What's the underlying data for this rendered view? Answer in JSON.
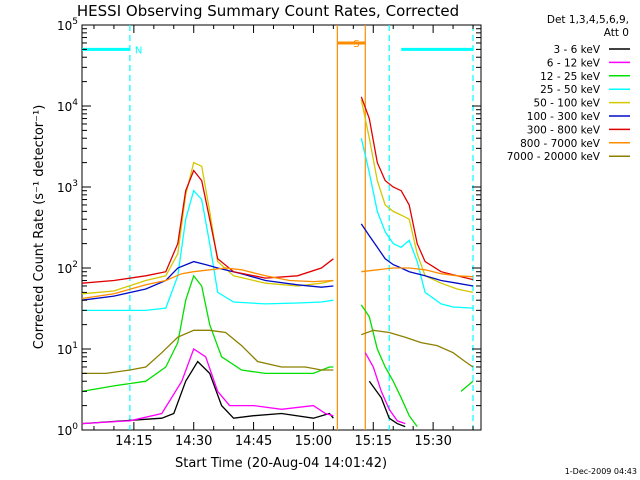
{
  "chart_data": {
    "type": "line",
    "title": "HESSI Observing Summary Count Rates, Corrected",
    "xlabel": "Start Time (20-Aug-04 14:01:42)",
    "ylabel": "Corrected Count Rate (s⁻¹ detector⁻¹)",
    "y_scale": "log",
    "ylim": [
      1,
      100000
    ],
    "xlim": [
      "14:02",
      "15:42"
    ],
    "x_ticks": [
      {
        "t": "14:15",
        "label": "14:15"
      },
      {
        "t": "14:30",
        "label": "14:30"
      },
      {
        "t": "14:45",
        "label": "14:45"
      },
      {
        "t": "15:00",
        "label": "15:00"
      },
      {
        "t": "15:15",
        "label": "15:15"
      },
      {
        "t": "15:30",
        "label": "15:30"
      }
    ],
    "y_ticks": [
      {
        "v": 1,
        "base": "10",
        "exp": "0"
      },
      {
        "v": 10,
        "base": "10",
        "exp": "1"
      },
      {
        "v": 100,
        "base": "10",
        "exp": "2"
      },
      {
        "v": 1000,
        "base": "10",
        "exp": "3"
      },
      {
        "v": 10000,
        "base": "10",
        "exp": "4"
      },
      {
        "v": 100000,
        "base": "10",
        "exp": "5"
      }
    ],
    "legend_header": [
      "Det 1,3,4,5,6,9,",
      "Att 0"
    ],
    "legend_position": "right",
    "series": [
      {
        "name": "3 - 6 keV",
        "color": "#000000",
        "points": [
          [
            "14:02",
            1.2
          ],
          [
            "14:22",
            1.4
          ],
          [
            "14:25",
            1.6
          ],
          [
            "14:28",
            4
          ],
          [
            "14:31",
            7
          ],
          [
            "14:34",
            5
          ],
          [
            "14:37",
            2
          ],
          [
            "14:40",
            1.4
          ],
          [
            "14:45",
            1.5
          ],
          [
            "14:52",
            1.6
          ],
          [
            "15:00",
            1.4
          ],
          [
            "15:04",
            1.6
          ],
          [
            "15:05",
            1.4
          ]
        ],
        "points_2": [
          [
            "15:14",
            4
          ],
          [
            "15:17",
            2.5
          ],
          [
            "15:19",
            1.4
          ],
          [
            "15:21",
            1.2
          ],
          [
            "15:23",
            1.1
          ]
        ]
      },
      {
        "name": "6 - 12 keV",
        "color": "#ff00ff",
        "points": [
          [
            "14:02",
            1.2
          ],
          [
            "14:14",
            1.3
          ],
          [
            "14:22",
            1.6
          ],
          [
            "14:27",
            4
          ],
          [
            "14:30",
            10
          ],
          [
            "14:33",
            8
          ],
          [
            "14:36",
            3
          ],
          [
            "14:39",
            2
          ],
          [
            "14:45",
            2
          ],
          [
            "14:52",
            1.8
          ],
          [
            "15:00",
            2
          ],
          [
            "15:03",
            1.6
          ],
          [
            "15:05",
            1.5
          ]
        ],
        "points_2": [
          [
            "15:13",
            9
          ],
          [
            "15:15",
            6
          ],
          [
            "15:17",
            3
          ],
          [
            "15:19",
            1.8
          ],
          [
            "15:21",
            1.3
          ],
          [
            "15:23",
            1.2
          ]
        ]
      },
      {
        "name": "12 - 25 keV",
        "color": "#00e000",
        "points": [
          [
            "14:02",
            3
          ],
          [
            "14:10",
            3.5
          ],
          [
            "14:18",
            4
          ],
          [
            "14:23",
            6
          ],
          [
            "14:26",
            12
          ],
          [
            "14:28",
            40
          ],
          [
            "14:30",
            80
          ],
          [
            "14:32",
            60
          ],
          [
            "14:34",
            20
          ],
          [
            "14:37",
            8
          ],
          [
            "14:42",
            5.5
          ],
          [
            "14:48",
            5
          ],
          [
            "14:55",
            5
          ],
          [
            "15:00",
            5
          ],
          [
            "15:04",
            6
          ],
          [
            "15:05",
            6
          ]
        ],
        "points_2": [
          [
            "15:12",
            35
          ],
          [
            "15:14",
            25
          ],
          [
            "15:16",
            10
          ],
          [
            "15:18",
            6
          ],
          [
            "15:20",
            4
          ],
          [
            "15:22",
            2.5
          ],
          [
            "15:24",
            1.5
          ],
          [
            "15:26",
            1.1
          ]
        ],
        "points_3": [
          [
            "15:37",
            3
          ],
          [
            "15:40",
            4
          ]
        ]
      },
      {
        "name": "25 - 50 keV",
        "color": "#00ffff",
        "points": [
          [
            "14:02",
            30
          ],
          [
            "14:10",
            30
          ],
          [
            "14:18",
            30
          ],
          [
            "14:23",
            32
          ],
          [
            "14:26",
            80
          ],
          [
            "14:28",
            400
          ],
          [
            "14:30",
            900
          ],
          [
            "14:32",
            700
          ],
          [
            "14:34",
            200
          ],
          [
            "14:36",
            50
          ],
          [
            "14:40",
            38
          ],
          [
            "14:48",
            36
          ],
          [
            "14:56",
            37
          ],
          [
            "15:02",
            38
          ],
          [
            "15:05",
            40
          ]
        ],
        "points_2": [
          [
            "15:12",
            4000
          ],
          [
            "15:14",
            1500
          ],
          [
            "15:16",
            500
          ],
          [
            "15:18",
            280
          ],
          [
            "15:20",
            200
          ],
          [
            "15:22",
            180
          ],
          [
            "15:24",
            220
          ],
          [
            "15:26",
            120
          ],
          [
            "15:28",
            50
          ],
          [
            "15:32",
            36
          ],
          [
            "15:35",
            33
          ],
          [
            "15:40",
            32
          ]
        ]
      },
      {
        "name": "50 - 100 keV",
        "color": "#d4c800",
        "points": [
          [
            "14:02",
            48
          ],
          [
            "14:10",
            52
          ],
          [
            "14:18",
            70
          ],
          [
            "14:23",
            80
          ],
          [
            "14:26",
            150
          ],
          [
            "14:28",
            800
          ],
          [
            "14:30",
            2000
          ],
          [
            "14:32",
            1800
          ],
          [
            "14:34",
            500
          ],
          [
            "14:36",
            120
          ],
          [
            "14:40",
            80
          ],
          [
            "14:48",
            65
          ],
          [
            "14:56",
            60
          ],
          [
            "15:02",
            65
          ],
          [
            "15:05",
            70
          ]
        ],
        "points_2": [
          [
            "15:12",
            12000
          ],
          [
            "15:14",
            4000
          ],
          [
            "15:16",
            1200
          ],
          [
            "15:18",
            600
          ],
          [
            "15:20",
            500
          ],
          [
            "15:22",
            450
          ],
          [
            "15:24",
            400
          ],
          [
            "15:26",
            150
          ],
          [
            "15:28",
            80
          ],
          [
            "15:32",
            65
          ],
          [
            "15:36",
            55
          ],
          [
            "15:40",
            50
          ]
        ]
      },
      {
        "name": "100 - 300 keV",
        "color": "#000cc8",
        "points": [
          [
            "14:02",
            40
          ],
          [
            "14:10",
            45
          ],
          [
            "14:18",
            55
          ],
          [
            "14:23",
            70
          ],
          [
            "14:26",
            100
          ],
          [
            "14:30",
            120
          ],
          [
            "14:33",
            110
          ],
          [
            "14:36",
            100
          ],
          [
            "14:42",
            85
          ],
          [
            "14:48",
            70
          ],
          [
            "14:56",
            62
          ],
          [
            "15:02",
            58
          ],
          [
            "15:05",
            60
          ]
        ],
        "points_2": [
          [
            "15:12",
            350
          ],
          [
            "15:14",
            250
          ],
          [
            "15:16",
            180
          ],
          [
            "15:18",
            130
          ],
          [
            "15:20",
            110
          ],
          [
            "15:22",
            100
          ],
          [
            "15:24",
            90
          ],
          [
            "15:28",
            80
          ],
          [
            "15:32",
            70
          ],
          [
            "15:36",
            65
          ],
          [
            "15:40",
            60
          ]
        ]
      },
      {
        "name": "300 - 800 keV",
        "color": "#e00000",
        "points": [
          [
            "14:02",
            65
          ],
          [
            "14:10",
            70
          ],
          [
            "14:18",
            80
          ],
          [
            "14:23",
            90
          ],
          [
            "14:26",
            200
          ],
          [
            "14:28",
            900
          ],
          [
            "14:30",
            1600
          ],
          [
            "14:32",
            1200
          ],
          [
            "14:34",
            400
          ],
          [
            "14:36",
            130
          ],
          [
            "14:40",
            90
          ],
          [
            "14:48",
            75
          ],
          [
            "14:56",
            80
          ],
          [
            "15:02",
            100
          ],
          [
            "15:05",
            130
          ]
        ],
        "points_2": [
          [
            "15:12",
            13000
          ],
          [
            "15:14",
            7000
          ],
          [
            "15:16",
            2000
          ],
          [
            "15:18",
            1200
          ],
          [
            "15:20",
            1000
          ],
          [
            "15:22",
            900
          ],
          [
            "15:24",
            600
          ],
          [
            "15:26",
            200
          ],
          [
            "15:28",
            120
          ],
          [
            "15:32",
            90
          ],
          [
            "15:36",
            80
          ],
          [
            "15:40",
            72
          ]
        ]
      },
      {
        "name": "800 - 7000 keV",
        "color": "#ff8c00",
        "points": [
          [
            "14:02",
            42
          ],
          [
            "14:10",
            48
          ],
          [
            "14:18",
            62
          ],
          [
            "14:23",
            70
          ],
          [
            "14:27",
            85
          ],
          [
            "14:30",
            90
          ],
          [
            "14:34",
            95
          ],
          [
            "14:38",
            100
          ],
          [
            "14:42",
            95
          ],
          [
            "14:48",
            80
          ],
          [
            "14:54",
            70
          ],
          [
            "15:00",
            68
          ],
          [
            "15:05",
            70
          ]
        ],
        "points_2": [
          [
            "15:12",
            90
          ],
          [
            "15:16",
            95
          ],
          [
            "15:20",
            100
          ],
          [
            "15:24",
            100
          ],
          [
            "15:28",
            95
          ],
          [
            "15:32",
            85
          ],
          [
            "15:36",
            80
          ],
          [
            "15:40",
            78
          ]
        ]
      },
      {
        "name": "7000 - 20000 keV",
        "color": "#8c8000",
        "points": [
          [
            "14:02",
            5
          ],
          [
            "14:08",
            5
          ],
          [
            "14:14",
            5.5
          ],
          [
            "14:18",
            6
          ],
          [
            "14:22",
            9
          ],
          [
            "14:26",
            14
          ],
          [
            "14:30",
            17
          ],
          [
            "14:34",
            17
          ],
          [
            "14:38",
            16
          ],
          [
            "14:42",
            11
          ],
          [
            "14:46",
            7
          ],
          [
            "14:52",
            6
          ],
          [
            "14:58",
            6
          ],
          [
            "15:02",
            5.5
          ],
          [
            "15:05",
            5.5
          ]
        ],
        "points_2": [
          [
            "15:12",
            15
          ],
          [
            "15:15",
            17
          ],
          [
            "15:19",
            16
          ],
          [
            "15:23",
            14
          ],
          [
            "15:27",
            12
          ],
          [
            "15:31",
            11
          ],
          [
            "15:35",
            9
          ],
          [
            "15:38",
            7
          ],
          [
            "15:40",
            6
          ]
        ]
      }
    ],
    "annotations": [
      {
        "label": "N",
        "color": "#00ffff",
        "bar": [
          "14:02",
          "14:14"
        ],
        "v_lines": [
          "14:14"
        ],
        "v_lines_dashed": true,
        "level": 50000
      },
      {
        "label": "S",
        "color": "#ff8c00",
        "bar": [
          "15:06",
          "15:13"
        ],
        "v_lines": [
          "15:06",
          "15:13"
        ],
        "v_lines_dashed": false,
        "level": 60000
      },
      {
        "label": "",
        "color": "#00ffff",
        "bar": [
          "15:22",
          "15:40"
        ],
        "v_lines": [
          "15:19",
          "15:40"
        ],
        "v_lines_dashed": true,
        "level": 50000
      }
    ],
    "grid": false
  },
  "footer": {
    "timestamp": "1-Dec-2009 04:43"
  }
}
